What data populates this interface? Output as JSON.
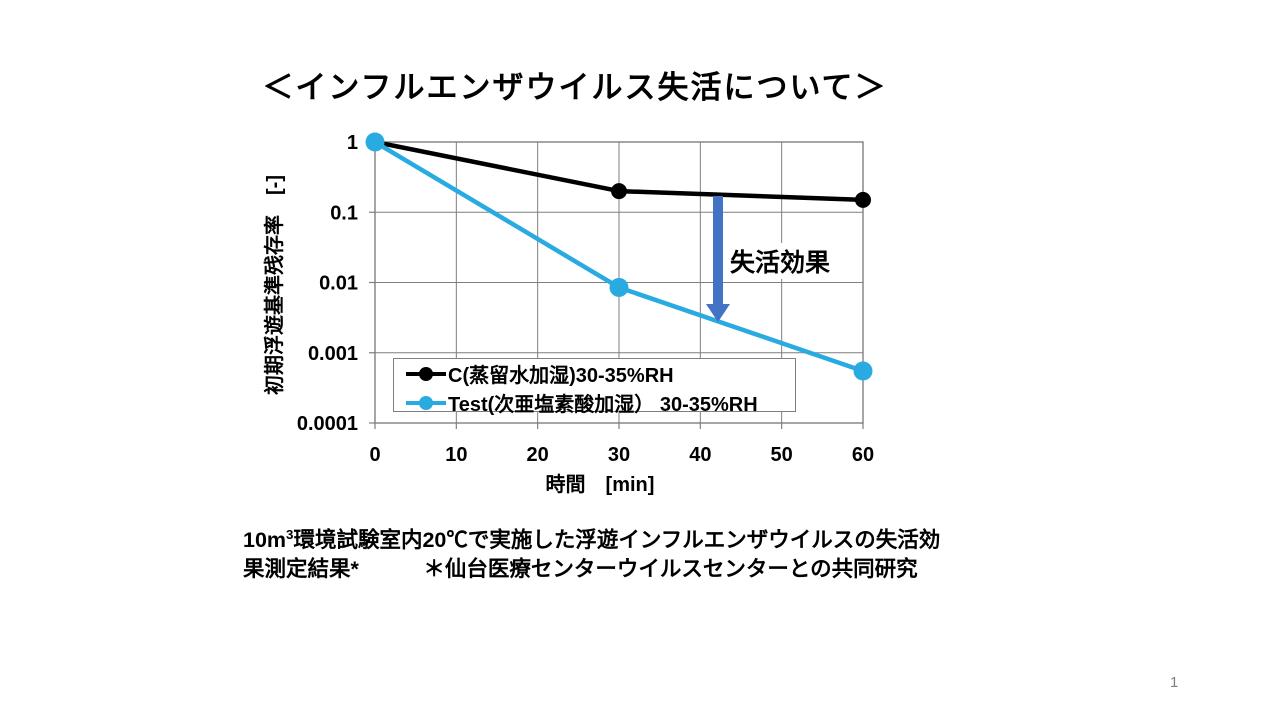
{
  "slide": {
    "page_number": "1"
  },
  "caption": {
    "line1_pre": "10m",
    "line1_sup": "3",
    "line1_rest": "環境試験室内20℃で実施した浮遊インフルエンザウイルスの失活効",
    "line2": "果測定結果*　　　＊仙台医療センターウイルスセンターとの共同研究"
  },
  "chart_data": {
    "type": "line",
    "title": "＜インフルエンザウイルス失活について＞",
    "xlabel": "時間　[min]",
    "ylabel": "初期浮遊基準残存率　[-]",
    "x_scale": "linear",
    "y_scale": "log",
    "xlim": [
      0,
      60
    ],
    "ylim": [
      0.0001,
      1
    ],
    "x_ticks": [
      0,
      10,
      20,
      30,
      40,
      50,
      60
    ],
    "x_tick_labels": [
      "0",
      "10",
      "20",
      "30",
      "40",
      "50",
      "60"
    ],
    "y_ticks": [
      1,
      0.1,
      0.01,
      0.001,
      0.0001
    ],
    "y_tick_labels": [
      "1",
      "0.1",
      "0.01",
      "0.001",
      "0.0001"
    ],
    "grid": true,
    "legend_position": "inside bottom-left",
    "series": [
      {
        "name": "C(蒸留水加湿)30-35%RH",
        "color": "#000000",
        "x": [
          0,
          30,
          60
        ],
        "y": [
          1,
          0.2,
          0.15
        ]
      },
      {
        "name": "Test(次亜塩素酸加湿） 30-35%RH",
        "color": "#29ABE2",
        "x": [
          0,
          30,
          60
        ],
        "y": [
          1,
          0.0085,
          0.00055
        ]
      }
    ],
    "annotation": {
      "label": "失活効果",
      "arrow_color": "#4472C4"
    },
    "colors": {
      "grid": "#7F7F7F",
      "frame": "#7F7F7F",
      "text": "#000000"
    }
  }
}
